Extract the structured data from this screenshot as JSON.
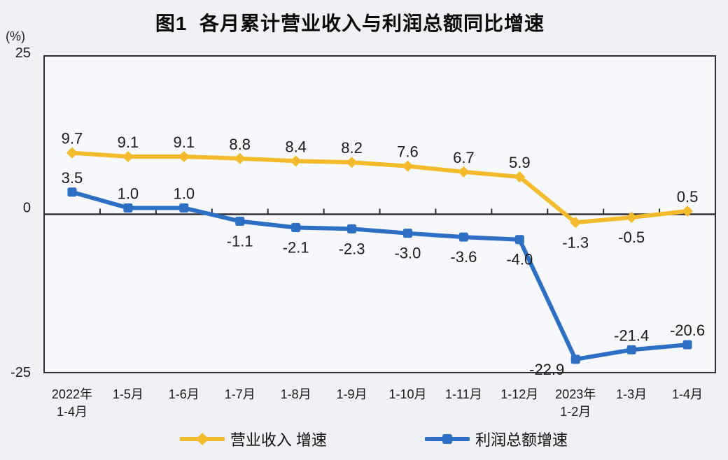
{
  "colors": {
    "axis": "#2e2e38",
    "background": "#eff1f5",
    "plot_background": "#f7f8fb",
    "label_text": "#1a1a1a"
  },
  "y_axis_unit": "(%)",
  "chart_data": {
    "type": "line",
    "title": "图1  各月累计营业收入与利润总额同比增速",
    "categories": [
      "2022年\n1-4月",
      "1-5月",
      "1-6月",
      "1-7月",
      "1-8月",
      "1-9月",
      "1-10月",
      "1-11月",
      "1-12月",
      "2023年\n1-2月",
      "1-3月",
      "1-4月"
    ],
    "series": [
      {
        "name": "营业收入 增速",
        "color": "#F3BA2C",
        "marker": "diamond",
        "values": [
          9.7,
          9.1,
          9.1,
          8.8,
          8.4,
          8.2,
          7.6,
          6.7,
          5.9,
          -1.3,
          -0.5,
          0.5
        ],
        "label_positions": [
          "above",
          "above",
          "above",
          "above",
          "above",
          "above",
          "above",
          "above",
          "above",
          "below",
          "below",
          "above"
        ]
      },
      {
        "name": "利润总额增速",
        "color": "#2D6FC4",
        "marker": "square",
        "values": [
          3.5,
          1.0,
          1.0,
          -1.1,
          -2.1,
          -2.3,
          -3.0,
          -3.6,
          -4.0,
          -22.9,
          -21.4,
          -20.6
        ],
        "label_positions": [
          "above",
          "above",
          "above",
          "below",
          "below",
          "below",
          "below",
          "below",
          "below",
          "below-left",
          "above",
          "above"
        ]
      }
    ],
    "ylim": [
      -25,
      25
    ],
    "yticks": [
      25,
      0,
      -25
    ],
    "ylabel": "(%)",
    "grid": false,
    "data_labels": true,
    "legend_position": "bottom"
  }
}
